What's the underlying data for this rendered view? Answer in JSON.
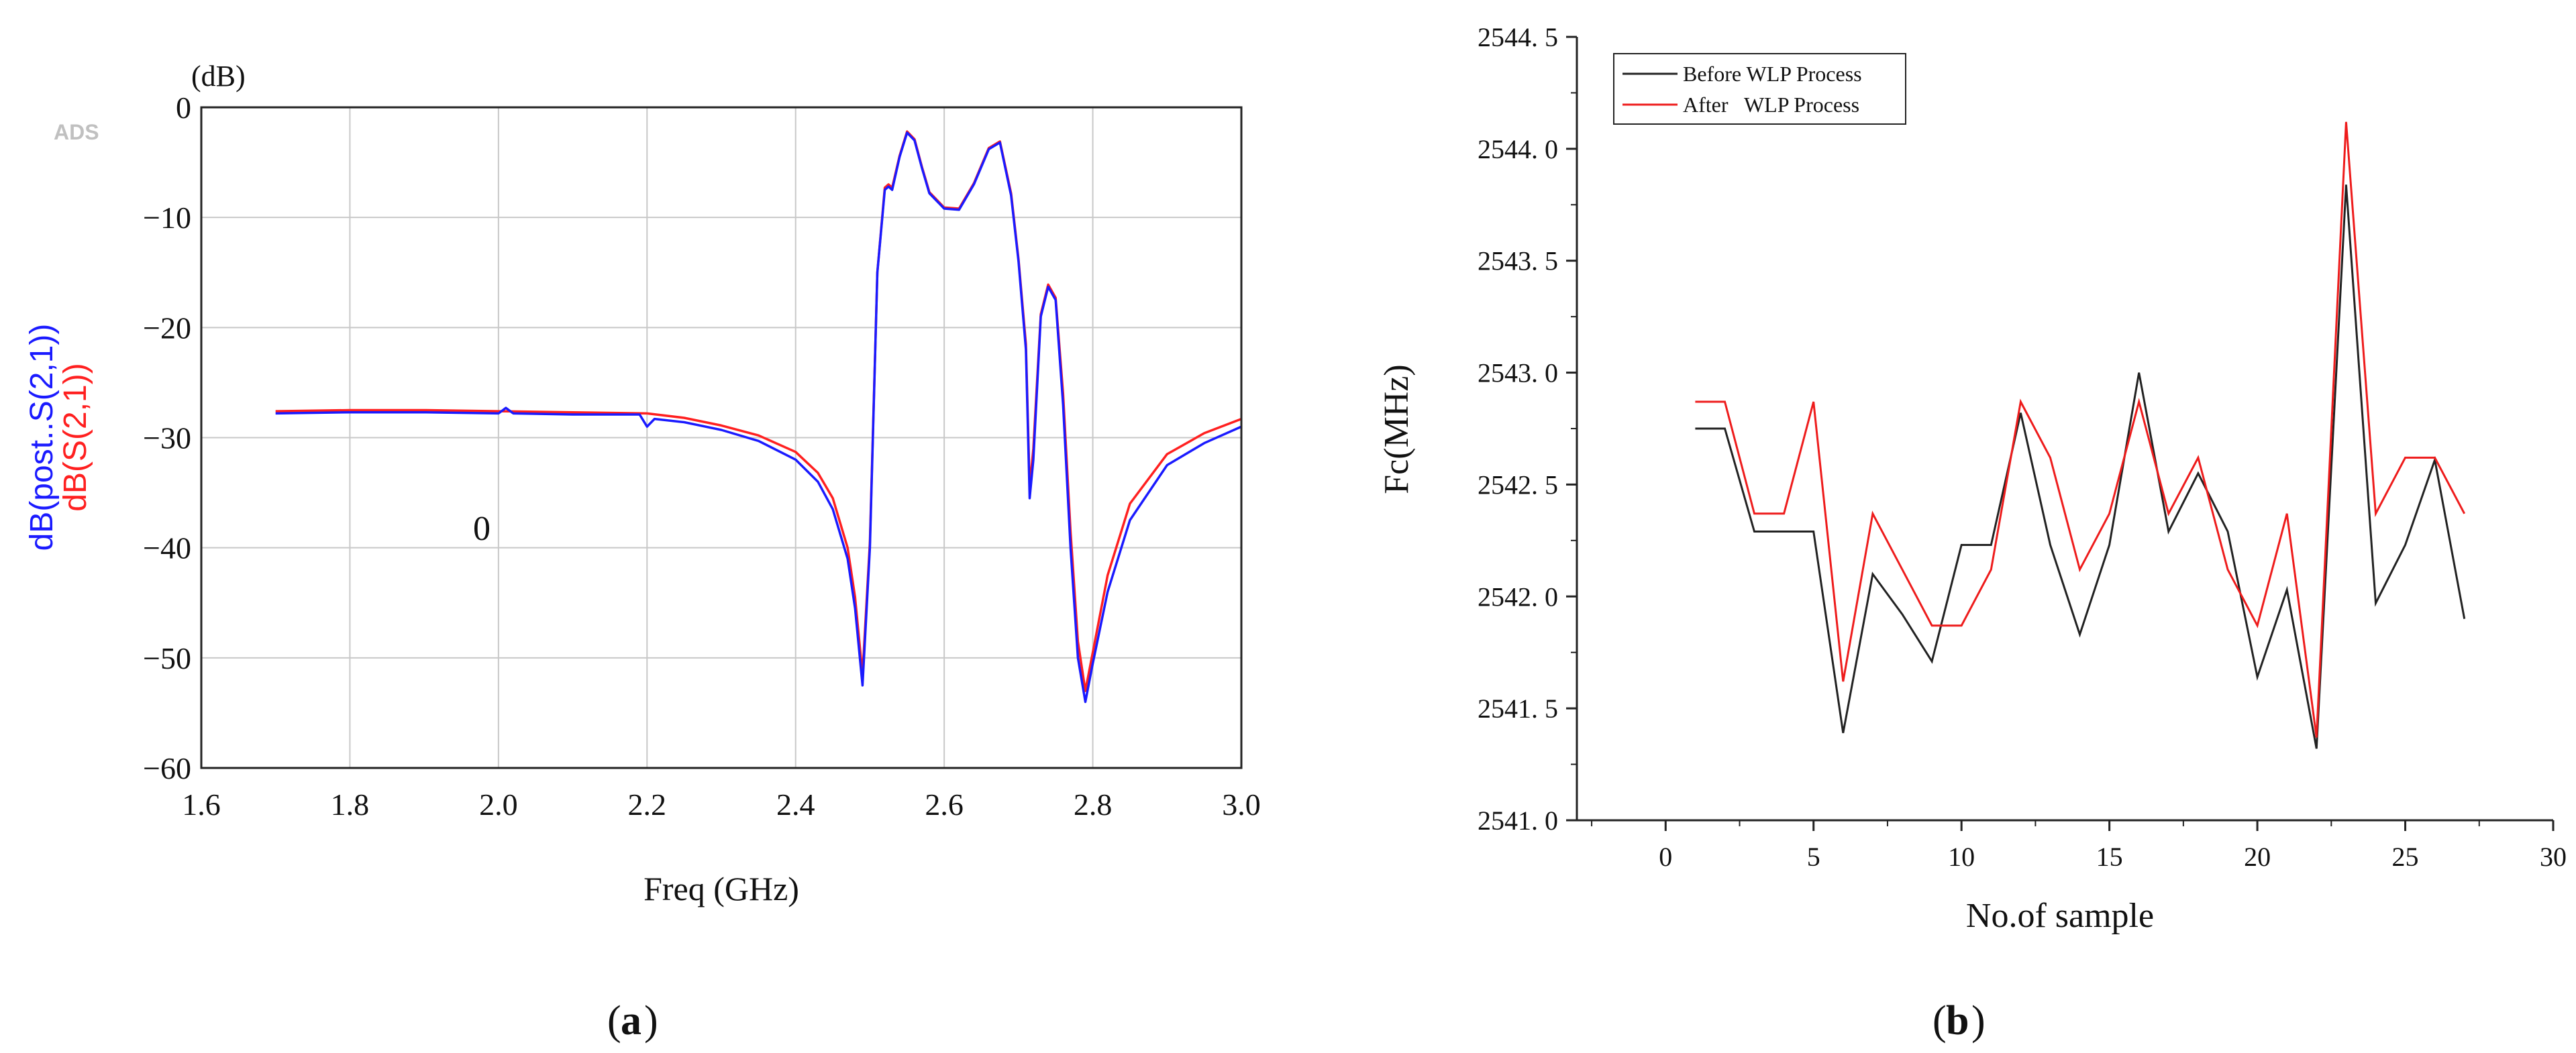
{
  "chart_data": [
    {
      "panel": "a",
      "type": "line",
      "panel_label": "a",
      "watermark": "ADS",
      "ylabel_series": [
        "dB(post..S(2,1))",
        "dB(S(2,1))"
      ],
      "y_unit": "(dB)",
      "xlabel": "Freq (GHz)",
      "xlim": [
        1.6,
        3.0
      ],
      "ylim": [
        -60,
        0
      ],
      "xticks": [
        "1.6",
        "1.8",
        "2.0",
        "2.2",
        "2.4",
        "2.6",
        "2.8",
        "3.0"
      ],
      "yticks": [
        "0",
        "−10",
        "−20",
        "−30",
        "−40",
        "−50",
        "−60"
      ],
      "annotation": "0",
      "grid": true,
      "colors": {
        "post": "#1a1aff",
        "s21": "#ff2020"
      },
      "series": [
        {
          "name": "dB(post..S(2,1))",
          "color": "#1a1aff",
          "x": [
            1.7,
            1.8,
            1.9,
            2.0,
            2.01,
            2.02,
            2.1,
            2.15,
            2.19,
            2.2,
            2.21,
            2.25,
            2.3,
            2.35,
            2.4,
            2.43,
            2.45,
            2.47,
            2.48,
            2.49,
            2.5,
            2.51,
            2.52,
            2.525,
            2.53,
            2.54,
            2.55,
            2.56,
            2.57,
            2.58,
            2.6,
            2.62,
            2.64,
            2.66,
            2.675,
            2.69,
            2.7,
            2.71,
            2.715,
            2.72,
            2.73,
            2.74,
            2.75,
            2.76,
            2.77,
            2.78,
            2.79,
            2.8,
            2.82,
            2.85,
            2.9,
            2.95,
            3.0
          ],
          "y": [
            -27.8,
            -27.7,
            -27.7,
            -27.8,
            -27.3,
            -27.8,
            -27.9,
            -27.9,
            -27.9,
            -29.0,
            -28.3,
            -28.6,
            -29.3,
            -30.3,
            -32.0,
            -34.0,
            -36.5,
            -41.0,
            -45.5,
            -52.5,
            -40.0,
            -15.0,
            -7.5,
            -7.2,
            -7.5,
            -4.5,
            -2.3,
            -3.0,
            -5.5,
            -7.8,
            -9.2,
            -9.3,
            -7.0,
            -3.8,
            -3.2,
            -8.0,
            -14.0,
            -22.0,
            -35.5,
            -32.0,
            -19.0,
            -16.3,
            -17.5,
            -27.0,
            -40.0,
            -50.0,
            -54.0,
            -50.5,
            -44.0,
            -37.5,
            -32.5,
            -30.5,
            -29.0
          ]
        },
        {
          "name": "dB(S(2,1))",
          "color": "#ff2020",
          "x": [
            1.7,
            1.8,
            1.9,
            2.0,
            2.1,
            2.2,
            2.25,
            2.3,
            2.35,
            2.4,
            2.43,
            2.45,
            2.47,
            2.48,
            2.49,
            2.5,
            2.51,
            2.52,
            2.525,
            2.53,
            2.54,
            2.55,
            2.56,
            2.57,
            2.58,
            2.6,
            2.62,
            2.64,
            2.66,
            2.675,
            2.69,
            2.7,
            2.71,
            2.715,
            2.72,
            2.73,
            2.74,
            2.75,
            2.76,
            2.77,
            2.78,
            2.79,
            2.8,
            2.82,
            2.85,
            2.9,
            2.95,
            3.0
          ],
          "y": [
            -27.6,
            -27.5,
            -27.5,
            -27.6,
            -27.7,
            -27.8,
            -28.2,
            -28.9,
            -29.8,
            -31.3,
            -33.2,
            -35.5,
            -40.0,
            -44.5,
            -51.5,
            -39.5,
            -15.0,
            -7.3,
            -7.0,
            -7.3,
            -4.4,
            -2.2,
            -2.9,
            -5.4,
            -7.7,
            -9.1,
            -9.2,
            -6.9,
            -3.7,
            -3.1,
            -7.8,
            -13.8,
            -21.5,
            -34.5,
            -31.0,
            -18.8,
            -16.1,
            -17.3,
            -26.0,
            -38.5,
            -48.5,
            -53.0,
            -49.5,
            -42.5,
            -36.0,
            -31.5,
            -29.6,
            -28.3
          ]
        }
      ]
    },
    {
      "panel": "b",
      "type": "line",
      "panel_label": "b",
      "xlabel": "No.of sample",
      "ylabel": "Fc(MHz)",
      "xlim": [
        -3,
        30
      ],
      "ylim": [
        2541.0,
        2544.5
      ],
      "xticks": [
        "0",
        "5",
        "10",
        "15",
        "20",
        "25",
        "30"
      ],
      "yticks": [
        "2541. 0",
        "2541. 5",
        "2542. 0",
        "2542. 5",
        "2543. 0",
        "2543. 5",
        "2544. 0",
        "2544. 5"
      ],
      "legend_position": "top-left",
      "grid": false,
      "series": [
        {
          "name": "Before WLP Process",
          "color": "#222222",
          "x": [
            1,
            2,
            3,
            4,
            5,
            6,
            7,
            8,
            9,
            10,
            11,
            12,
            13,
            14,
            15,
            16,
            17,
            18,
            19,
            20,
            21,
            22,
            23,
            24,
            25,
            26,
            27
          ],
          "y": [
            2542.75,
            2542.75,
            2542.29,
            2542.29,
            2542.29,
            2541.39,
            2542.1,
            2541.92,
            2541.71,
            2542.23,
            2542.23,
            2542.82,
            2542.23,
            2541.83,
            2542.23,
            2543.0,
            2542.29,
            2542.55,
            2542.29,
            2541.64,
            2542.03,
            2541.32,
            2543.84,
            2541.97,
            2542.23,
            2542.61,
            2541.9
          ]
        },
        {
          "name": "After   WLP Process",
          "color": "#ee1c1c",
          "x": [
            1,
            2,
            3,
            4,
            5,
            6,
            7,
            8,
            9,
            10,
            11,
            12,
            13,
            14,
            15,
            16,
            17,
            18,
            19,
            20,
            21,
            22,
            23,
            24,
            25,
            26,
            27
          ],
          "y": [
            2542.87,
            2542.87,
            2542.37,
            2542.37,
            2542.87,
            2541.62,
            2542.37,
            2542.12,
            2541.87,
            2541.87,
            2542.12,
            2542.87,
            2542.62,
            2542.12,
            2542.37,
            2542.87,
            2542.37,
            2542.62,
            2542.12,
            2541.87,
            2542.37,
            2541.37,
            2544.12,
            2542.37,
            2542.62,
            2542.62,
            2542.37
          ]
        }
      ]
    }
  ]
}
